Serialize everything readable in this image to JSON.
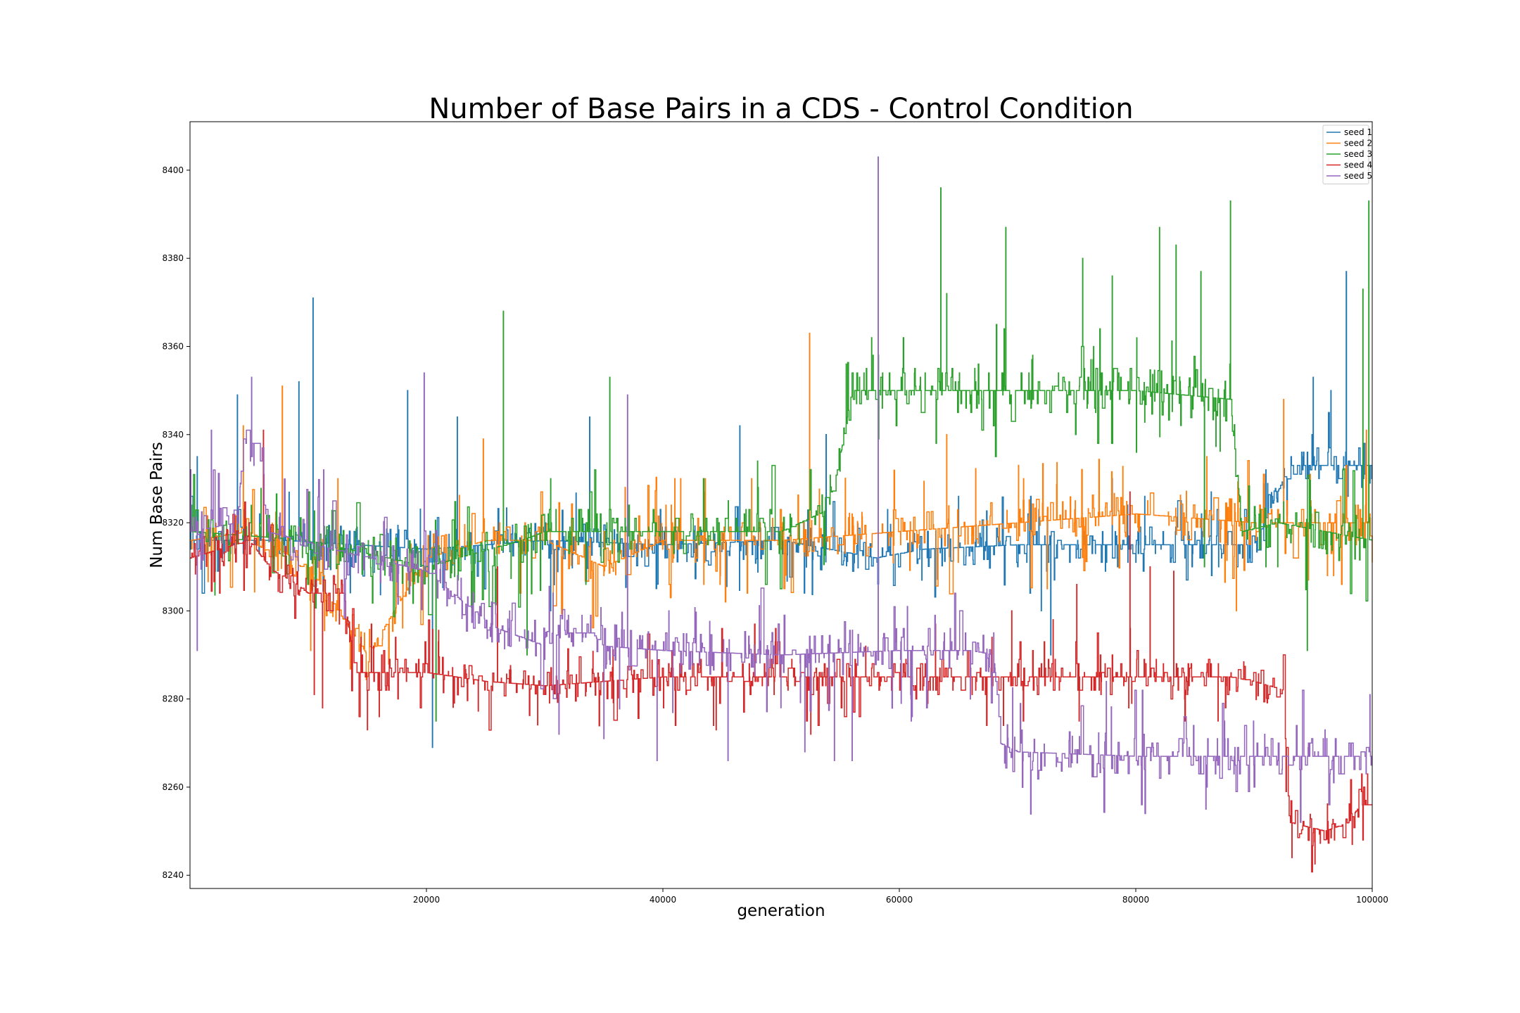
{
  "chart_data": {
    "type": "line",
    "title": "Number of Base Pairs in a CDS - Control Condition",
    "xlabel": "generation",
    "ylabel": "Num Base Pairs",
    "xlim": [
      0,
      100000
    ],
    "ylim": [
      8237,
      8411
    ],
    "xticks": [
      20000,
      40000,
      60000,
      80000,
      100000
    ],
    "yticks": [
      8240,
      8260,
      8280,
      8300,
      8320,
      8340,
      8360,
      8380,
      8400
    ],
    "grid": false,
    "legend_position": "top-right",
    "series": [
      {
        "name": "seed 1",
        "color": "#1f77b4",
        "base": [
          [
            0,
            8316
          ],
          [
            8000,
            8316
          ],
          [
            20000,
            8314
          ],
          [
            30000,
            8316
          ],
          [
            40000,
            8315
          ],
          [
            50000,
            8316
          ],
          [
            58000,
            8312
          ],
          [
            62000,
            8314
          ],
          [
            70000,
            8315
          ],
          [
            80000,
            8315
          ],
          [
            90000,
            8315
          ],
          [
            93000,
            8333
          ],
          [
            100000,
            8333
          ]
        ],
        "noise": 4,
        "spikes": [
          [
            600,
            8335
          ],
          [
            4000,
            8349
          ],
          [
            9200,
            8352
          ],
          [
            10400,
            8371
          ],
          [
            18400,
            8350
          ],
          [
            22600,
            8344
          ],
          [
            33800,
            8344
          ],
          [
            46500,
            8342
          ],
          [
            53800,
            8340
          ],
          [
            59000,
            8323
          ],
          [
            72000,
            8300
          ],
          [
            72800,
            8290
          ],
          [
            78000,
            8330
          ],
          [
            95000,
            8353
          ],
          [
            96500,
            8350
          ],
          [
            97800,
            8377
          ],
          [
            20500,
            8269
          ],
          [
            30500,
            8300
          ],
          [
            41000,
            8320
          ],
          [
            65000,
            8326
          ],
          [
            85000,
            8318
          ],
          [
            87000,
            8310
          ]
        ]
      },
      {
        "name": "seed 2",
        "color": "#ff7f0e",
        "base": [
          [
            0,
            8316
          ],
          [
            5000,
            8318
          ],
          [
            10000,
            8310
          ],
          [
            15000,
            8290
          ],
          [
            20000,
            8312
          ],
          [
            25000,
            8316
          ],
          [
            30000,
            8316
          ],
          [
            35000,
            8310
          ],
          [
            40000,
            8316
          ],
          [
            50000,
            8316
          ],
          [
            60000,
            8318
          ],
          [
            70000,
            8320
          ],
          [
            80000,
            8322
          ],
          [
            90000,
            8320
          ],
          [
            100000,
            8320
          ]
        ],
        "noise": 5,
        "spikes": [
          [
            4500,
            8342
          ],
          [
            7800,
            8351
          ],
          [
            10200,
            8291
          ],
          [
            12500,
            8330
          ],
          [
            18000,
            8310
          ],
          [
            24800,
            8339
          ],
          [
            31500,
            8300
          ],
          [
            36800,
            8328
          ],
          [
            41500,
            8330
          ],
          [
            47500,
            8330
          ],
          [
            52400,
            8363
          ],
          [
            56000,
            8322
          ],
          [
            64000,
            8340
          ],
          [
            70500,
            8330
          ],
          [
            72500,
            8305
          ],
          [
            81000,
            8325
          ],
          [
            86000,
            8335
          ],
          [
            88500,
            8300
          ],
          [
            92500,
            8348
          ],
          [
            99500,
            8341
          ],
          [
            99800,
            8322
          ]
        ]
      },
      {
        "name": "seed 3",
        "color": "#2ca02c",
        "base": [
          [
            0,
            8318
          ],
          [
            10000,
            8316
          ],
          [
            20000,
            8310
          ],
          [
            28000,
            8316
          ],
          [
            30000,
            8318
          ],
          [
            50000,
            8318
          ],
          [
            54000,
            8323
          ],
          [
            55000,
            8335
          ],
          [
            56000,
            8350
          ],
          [
            60000,
            8350
          ],
          [
            70000,
            8350
          ],
          [
            72000,
            8350
          ],
          [
            80000,
            8350
          ],
          [
            88000,
            8348
          ],
          [
            89000,
            8318
          ],
          [
            92000,
            8320
          ],
          [
            100000,
            8316
          ]
        ],
        "noise": 5,
        "spikes": [
          [
            26500,
            8368
          ],
          [
            35500,
            8353
          ],
          [
            48000,
            8334
          ],
          [
            55500,
            8356
          ],
          [
            57000,
            8354
          ],
          [
            63500,
            8396
          ],
          [
            64000,
            8372
          ],
          [
            69000,
            8387
          ],
          [
            75500,
            8380
          ],
          [
            78000,
            8376
          ],
          [
            82000,
            8387
          ],
          [
            83400,
            8383
          ],
          [
            85500,
            8377
          ],
          [
            88000,
            8393
          ],
          [
            91000,
            8310
          ],
          [
            94500,
            8291
          ],
          [
            96500,
            8315
          ],
          [
            99200,
            8373
          ],
          [
            99700,
            8393
          ],
          [
            20800,
            8275
          ],
          [
            28500,
            8290
          ],
          [
            85800,
            8310
          ]
        ]
      },
      {
        "name": "seed 4",
        "color": "#d62728",
        "base": [
          [
            0,
            8312
          ],
          [
            5000,
            8316
          ],
          [
            7000,
            8309
          ],
          [
            8500,
            8307
          ],
          [
            10000,
            8304
          ],
          [
            13000,
            8304
          ],
          [
            14000,
            8286
          ],
          [
            20000,
            8286
          ],
          [
            25000,
            8284
          ],
          [
            30000,
            8283
          ],
          [
            40000,
            8285
          ],
          [
            50000,
            8285
          ],
          [
            60000,
            8285
          ],
          [
            70000,
            8285
          ],
          [
            80000,
            8285
          ],
          [
            88000,
            8285
          ],
          [
            90000,
            8284
          ],
          [
            92500,
            8282
          ],
          [
            93000,
            8252
          ],
          [
            96000,
            8250
          ],
          [
            98000,
            8252
          ],
          [
            99000,
            8256
          ],
          [
            100000,
            8256
          ]
        ],
        "noise": 4,
        "spikes": [
          [
            6200,
            8341
          ],
          [
            10500,
            8281
          ],
          [
            11200,
            8278
          ],
          [
            15000,
            8273
          ],
          [
            16000,
            8276
          ],
          [
            21000,
            8293
          ],
          [
            26000,
            8310
          ],
          [
            52500,
            8272
          ],
          [
            69500,
            8300
          ],
          [
            73000,
            8298
          ],
          [
            75000,
            8306
          ],
          [
            79500,
            8327
          ],
          [
            81200,
            8310
          ],
          [
            83200,
            8309
          ],
          [
            93200,
            8244
          ],
          [
            96800,
            8248
          ],
          [
            98300,
            8247
          ],
          [
            99600,
            8263
          ]
        ]
      },
      {
        "name": "seed 5",
        "color": "#9467bd",
        "base": [
          [
            0,
            8318
          ],
          [
            4000,
            8320
          ],
          [
            4500,
            8338
          ],
          [
            6000,
            8338
          ],
          [
            6500,
            8318
          ],
          [
            12000,
            8314
          ],
          [
            20000,
            8309
          ],
          [
            24000,
            8300
          ],
          [
            26000,
            8296
          ],
          [
            30000,
            8292
          ],
          [
            32000,
            8295
          ],
          [
            34000,
            8295
          ],
          [
            35000,
            8292
          ],
          [
            40000,
            8291
          ],
          [
            50000,
            8290
          ],
          [
            60000,
            8291
          ],
          [
            66000,
            8291
          ],
          [
            68000,
            8290
          ],
          [
            68500,
            8270
          ],
          [
            70000,
            8268
          ],
          [
            80000,
            8267
          ],
          [
            90000,
            8267
          ],
          [
            100000,
            8267
          ]
        ],
        "noise": 5,
        "spikes": [
          [
            1800,
            8341
          ],
          [
            5200,
            8353
          ],
          [
            11300,
            8332
          ],
          [
            19800,
            8354
          ],
          [
            31200,
            8272
          ],
          [
            35000,
            8271
          ],
          [
            37000,
            8349
          ],
          [
            39500,
            8266
          ],
          [
            45500,
            8266
          ],
          [
            52000,
            8268
          ],
          [
            54500,
            8266
          ],
          [
            56000,
            8266
          ],
          [
            58200,
            8403
          ],
          [
            61000,
            8275
          ],
          [
            66000,
            8280
          ],
          [
            77500,
            8284
          ],
          [
            87500,
            8275
          ],
          [
            96000,
            8273
          ],
          [
            99800,
            8281
          ],
          [
            600,
            8291
          ],
          [
            40500,
            8300
          ]
        ]
      }
    ]
  }
}
